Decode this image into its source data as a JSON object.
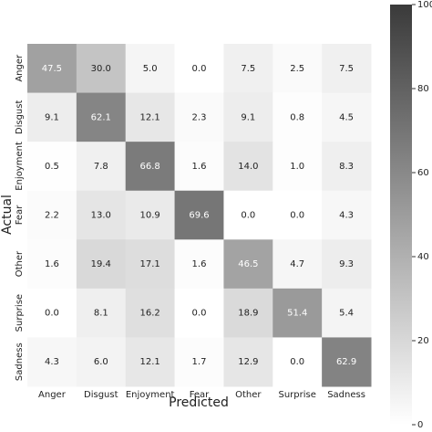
{
  "chart_data": {
    "type": "heatmap",
    "x_categories": [
      "Anger",
      "Disgust",
      "Enjoyment",
      "Fear",
      "Other",
      "Surprise",
      "Sadness"
    ],
    "y_categories": [
      "Anger",
      "Disgust",
      "Enjoyment",
      "Fear",
      "Other",
      "Surprise",
      "Sadness"
    ],
    "xlabel": "Predicted",
    "ylabel": "Actual",
    "values": [
      [
        47.5,
        30,
        5,
        0,
        7.5,
        2.5,
        7.5
      ],
      [
        9.1,
        62.1,
        12.1,
        2.3,
        9.1,
        0.8,
        4.5
      ],
      [
        0.5,
        7.8,
        66.8,
        1.6,
        14,
        1,
        8.3
      ],
      [
        2.2,
        13,
        10.9,
        69.6,
        0,
        0,
        4.3
      ],
      [
        1.6,
        19.4,
        17.1,
        1.6,
        46.5,
        4.7,
        9.3
      ],
      [
        0,
        8.1,
        16.2,
        0,
        18.9,
        51.4,
        5.4
      ],
      [
        4.3,
        6,
        12.1,
        1.7,
        12.9,
        0,
        62.9
      ]
    ],
    "value_labels": [
      [
        "47.5",
        "30.0",
        "5.0",
        "0.0",
        "7.5",
        "2.5",
        "7.5"
      ],
      [
        "9.1",
        "62.1",
        "12.1",
        "2.3",
        "9.1",
        "0.8",
        "4.5"
      ],
      [
        "0.5",
        "7.8",
        "66.8",
        "1.6",
        "14.0",
        "1.0",
        "8.3"
      ],
      [
        "2.2",
        "13.0",
        "10.9",
        "69.6",
        "0.0",
        "0.0",
        "4.3"
      ],
      [
        "1.6",
        "19.4",
        "17.1",
        "1.6",
        "46.5",
        "4.7",
        "9.3"
      ],
      [
        "0.0",
        "8.1",
        "16.2",
        "0.0",
        "18.9",
        "51.4",
        "5.4"
      ],
      [
        "4.3",
        "6.0",
        "12.1",
        "1.7",
        "12.9",
        "0.0",
        "62.9"
      ]
    ],
    "colorbar_lim": [
      0,
      100
    ],
    "colorbar_ticks": [
      0,
      20,
      40,
      60,
      80,
      100
    ],
    "color_low": "#ffffff",
    "color_high": "#3a3a3a"
  }
}
